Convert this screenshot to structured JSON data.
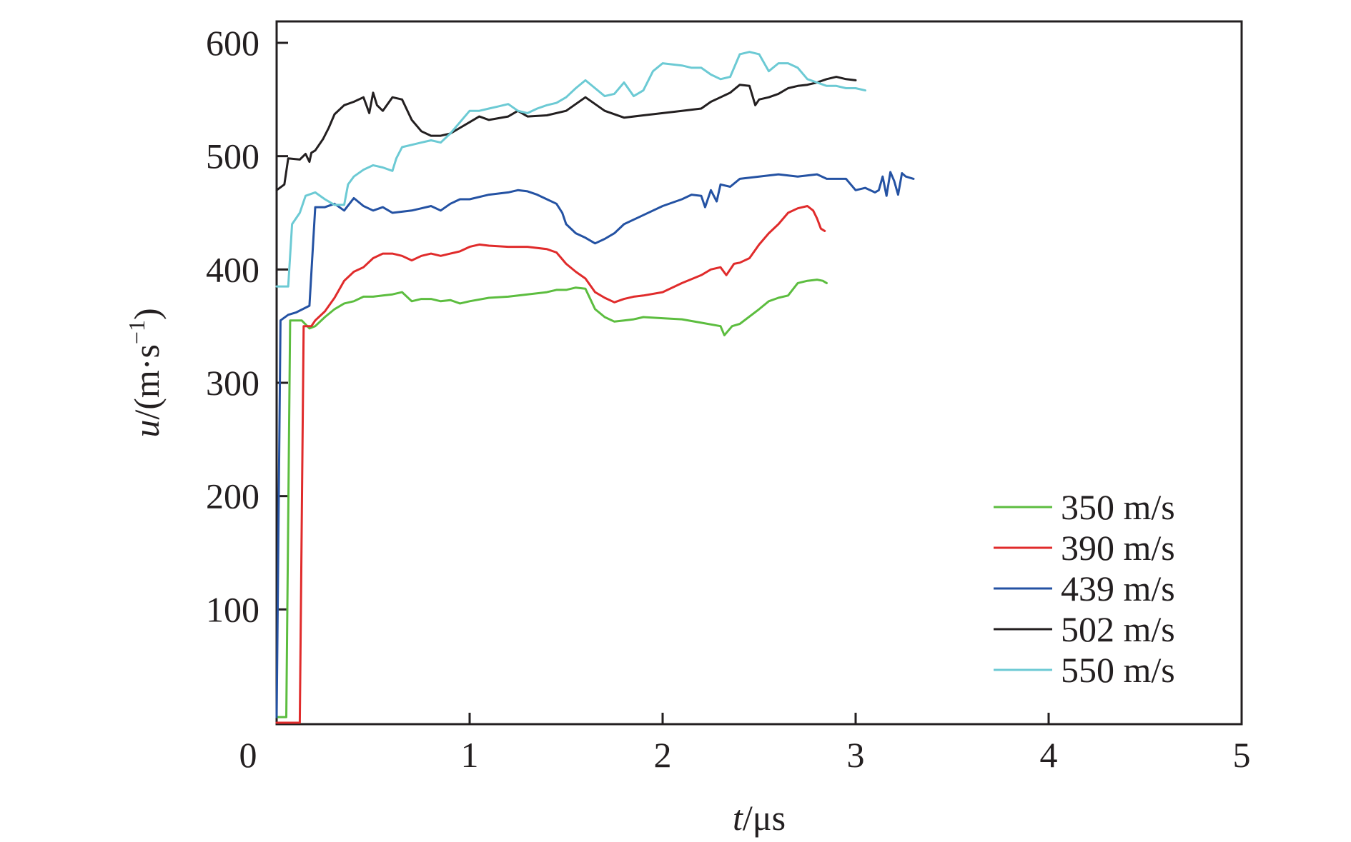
{
  "chart_data": {
    "type": "line",
    "title": "",
    "xlabel_var": "t",
    "xlabel_unit": "/μs",
    "ylabel_var": "u",
    "ylabel_unit": "/(m·s",
    "ylabel_sup": "−1",
    "ylabel_close": ")",
    "xlim": [
      0,
      5
    ],
    "ylim": [
      0,
      600
    ],
    "x_ticks": [
      0,
      1,
      2,
      3,
      4,
      5
    ],
    "x_tick_labels": [
      "0",
      "1",
      "2",
      "3",
      "4",
      "5"
    ],
    "y_ticks": [
      100,
      200,
      300,
      400,
      500,
      600
    ],
    "y_tick_labels": [
      "100",
      "200",
      "300",
      "400",
      "500",
      "600"
    ],
    "grid": false,
    "legend_position": "bottom-right",
    "series": [
      {
        "name": "350 m/s",
        "color": "#5cbd3f",
        "points": [
          [
            0,
            5
          ],
          [
            0.05,
            5
          ],
          [
            0.07,
            355
          ],
          [
            0.13,
            355
          ],
          [
            0.17,
            348
          ],
          [
            0.2,
            350
          ],
          [
            0.25,
            358
          ],
          [
            0.3,
            365
          ],
          [
            0.35,
            370
          ],
          [
            0.4,
            372
          ],
          [
            0.45,
            376
          ],
          [
            0.5,
            376
          ],
          [
            0.55,
            377
          ],
          [
            0.6,
            378
          ],
          [
            0.65,
            380
          ],
          [
            0.7,
            372
          ],
          [
            0.75,
            374
          ],
          [
            0.8,
            374
          ],
          [
            0.85,
            372
          ],
          [
            0.9,
            373
          ],
          [
            0.95,
            370
          ],
          [
            1.0,
            372
          ],
          [
            1.1,
            375
          ],
          [
            1.2,
            376
          ],
          [
            1.3,
            378
          ],
          [
            1.4,
            380
          ],
          [
            1.45,
            382
          ],
          [
            1.5,
            382
          ],
          [
            1.55,
            384
          ],
          [
            1.6,
            383
          ],
          [
            1.65,
            365
          ],
          [
            1.7,
            358
          ],
          [
            1.75,
            354
          ],
          [
            1.8,
            355
          ],
          [
            1.85,
            356
          ],
          [
            1.9,
            358
          ],
          [
            2.0,
            357
          ],
          [
            2.1,
            356
          ],
          [
            2.2,
            353
          ],
          [
            2.3,
            350
          ],
          [
            2.32,
            342
          ],
          [
            2.36,
            350
          ],
          [
            2.4,
            352
          ],
          [
            2.5,
            365
          ],
          [
            2.55,
            372
          ],
          [
            2.6,
            375
          ],
          [
            2.65,
            377
          ],
          [
            2.7,
            388
          ],
          [
            2.75,
            390
          ],
          [
            2.8,
            391
          ],
          [
            2.83,
            390
          ],
          [
            2.85,
            388
          ]
        ]
      },
      {
        "name": "390 m/s",
        "color": "#e02b2b",
        "points": [
          [
            0,
            0
          ],
          [
            0.12,
            0
          ],
          [
            0.14,
            350
          ],
          [
            0.18,
            350
          ],
          [
            0.2,
            355
          ],
          [
            0.25,
            363
          ],
          [
            0.3,
            375
          ],
          [
            0.35,
            390
          ],
          [
            0.4,
            398
          ],
          [
            0.45,
            402
          ],
          [
            0.5,
            410
          ],
          [
            0.55,
            414
          ],
          [
            0.6,
            414
          ],
          [
            0.65,
            412
          ],
          [
            0.7,
            408
          ],
          [
            0.75,
            412
          ],
          [
            0.8,
            414
          ],
          [
            0.85,
            412
          ],
          [
            0.9,
            414
          ],
          [
            0.95,
            416
          ],
          [
            1.0,
            420
          ],
          [
            1.05,
            422
          ],
          [
            1.1,
            421
          ],
          [
            1.2,
            420
          ],
          [
            1.3,
            420
          ],
          [
            1.4,
            418
          ],
          [
            1.45,
            415
          ],
          [
            1.5,
            405
          ],
          [
            1.55,
            398
          ],
          [
            1.6,
            392
          ],
          [
            1.65,
            380
          ],
          [
            1.7,
            375
          ],
          [
            1.75,
            371
          ],
          [
            1.8,
            374
          ],
          [
            1.85,
            376
          ],
          [
            1.9,
            377
          ],
          [
            2.0,
            380
          ],
          [
            2.1,
            388
          ],
          [
            2.2,
            395
          ],
          [
            2.25,
            400
          ],
          [
            2.3,
            402
          ],
          [
            2.33,
            395
          ],
          [
            2.37,
            405
          ],
          [
            2.4,
            406
          ],
          [
            2.45,
            410
          ],
          [
            2.5,
            422
          ],
          [
            2.55,
            432
          ],
          [
            2.6,
            440
          ],
          [
            2.65,
            450
          ],
          [
            2.7,
            454
          ],
          [
            2.75,
            456
          ],
          [
            2.78,
            452
          ],
          [
            2.8,
            445
          ],
          [
            2.82,
            436
          ],
          [
            2.84,
            434
          ]
        ]
      },
      {
        "name": "439 m/s",
        "color": "#2452a3",
        "points": [
          [
            0,
            5
          ],
          [
            0.02,
            355
          ],
          [
            0.06,
            360
          ],
          [
            0.1,
            362
          ],
          [
            0.17,
            368
          ],
          [
            0.2,
            455
          ],
          [
            0.25,
            455
          ],
          [
            0.3,
            458
          ],
          [
            0.35,
            452
          ],
          [
            0.4,
            463
          ],
          [
            0.45,
            456
          ],
          [
            0.5,
            452
          ],
          [
            0.55,
            455
          ],
          [
            0.6,
            450
          ],
          [
            0.7,
            452
          ],
          [
            0.75,
            454
          ],
          [
            0.8,
            456
          ],
          [
            0.85,
            452
          ],
          [
            0.9,
            458
          ],
          [
            0.95,
            462
          ],
          [
            1.0,
            462
          ],
          [
            1.1,
            466
          ],
          [
            1.2,
            468
          ],
          [
            1.25,
            470
          ],
          [
            1.3,
            469
          ],
          [
            1.35,
            466
          ],
          [
            1.4,
            462
          ],
          [
            1.45,
            458
          ],
          [
            1.48,
            450
          ],
          [
            1.5,
            440
          ],
          [
            1.55,
            432
          ],
          [
            1.6,
            428
          ],
          [
            1.65,
            423
          ],
          [
            1.7,
            427
          ],
          [
            1.75,
            432
          ],
          [
            1.8,
            440
          ],
          [
            1.9,
            448
          ],
          [
            2.0,
            456
          ],
          [
            2.1,
            462
          ],
          [
            2.15,
            466
          ],
          [
            2.2,
            465
          ],
          [
            2.22,
            455
          ],
          [
            2.25,
            470
          ],
          [
            2.28,
            460
          ],
          [
            2.3,
            475
          ],
          [
            2.35,
            473
          ],
          [
            2.4,
            480
          ],
          [
            2.5,
            482
          ],
          [
            2.6,
            484
          ],
          [
            2.7,
            482
          ],
          [
            2.8,
            484
          ],
          [
            2.85,
            480
          ],
          [
            2.9,
            480
          ],
          [
            2.95,
            480
          ],
          [
            3.0,
            470
          ],
          [
            3.05,
            472
          ],
          [
            3.1,
            468
          ],
          [
            3.12,
            470
          ],
          [
            3.14,
            482
          ],
          [
            3.16,
            465
          ],
          [
            3.18,
            486
          ],
          [
            3.2,
            478
          ],
          [
            3.22,
            466
          ],
          [
            3.24,
            485
          ],
          [
            3.26,
            482
          ],
          [
            3.3,
            480
          ]
        ]
      },
      {
        "name": "502 m/s",
        "color": "#231f20",
        "points": [
          [
            0,
            470
          ],
          [
            0.04,
            475
          ],
          [
            0.06,
            498
          ],
          [
            0.12,
            497
          ],
          [
            0.15,
            502
          ],
          [
            0.17,
            495
          ],
          [
            0.18,
            503
          ],
          [
            0.2,
            505
          ],
          [
            0.24,
            515
          ],
          [
            0.27,
            525
          ],
          [
            0.3,
            537
          ],
          [
            0.35,
            545
          ],
          [
            0.4,
            548
          ],
          [
            0.45,
            552
          ],
          [
            0.48,
            538
          ],
          [
            0.5,
            556
          ],
          [
            0.52,
            545
          ],
          [
            0.55,
            540
          ],
          [
            0.6,
            552
          ],
          [
            0.65,
            550
          ],
          [
            0.7,
            532
          ],
          [
            0.75,
            522
          ],
          [
            0.8,
            518
          ],
          [
            0.85,
            518
          ],
          [
            0.9,
            520
          ],
          [
            0.95,
            525
          ],
          [
            1.0,
            530
          ],
          [
            1.05,
            535
          ],
          [
            1.1,
            532
          ],
          [
            1.2,
            535
          ],
          [
            1.25,
            540
          ],
          [
            1.3,
            535
          ],
          [
            1.4,
            536
          ],
          [
            1.5,
            540
          ],
          [
            1.6,
            552
          ],
          [
            1.65,
            546
          ],
          [
            1.7,
            540
          ],
          [
            1.8,
            534
          ],
          [
            1.9,
            536
          ],
          [
            2.0,
            538
          ],
          [
            2.1,
            540
          ],
          [
            2.2,
            542
          ],
          [
            2.25,
            548
          ],
          [
            2.3,
            552
          ],
          [
            2.35,
            556
          ],
          [
            2.4,
            563
          ],
          [
            2.45,
            562
          ],
          [
            2.48,
            545
          ],
          [
            2.5,
            550
          ],
          [
            2.55,
            552
          ],
          [
            2.6,
            555
          ],
          [
            2.65,
            560
          ],
          [
            2.7,
            562
          ],
          [
            2.75,
            563
          ],
          [
            2.8,
            565
          ],
          [
            2.85,
            568
          ],
          [
            2.9,
            570
          ],
          [
            2.95,
            568
          ],
          [
            3.0,
            567
          ]
        ]
      },
      {
        "name": "550 m/s",
        "color": "#6ccad4",
        "points": [
          [
            0,
            385
          ],
          [
            0.06,
            385
          ],
          [
            0.08,
            440
          ],
          [
            0.12,
            450
          ],
          [
            0.15,
            465
          ],
          [
            0.2,
            468
          ],
          [
            0.25,
            462
          ],
          [
            0.3,
            457
          ],
          [
            0.35,
            457
          ],
          [
            0.37,
            475
          ],
          [
            0.4,
            482
          ],
          [
            0.45,
            488
          ],
          [
            0.5,
            492
          ],
          [
            0.55,
            490
          ],
          [
            0.6,
            487
          ],
          [
            0.62,
            498
          ],
          [
            0.65,
            508
          ],
          [
            0.7,
            510
          ],
          [
            0.75,
            512
          ],
          [
            0.8,
            514
          ],
          [
            0.85,
            512
          ],
          [
            0.9,
            520
          ],
          [
            0.95,
            530
          ],
          [
            1.0,
            540
          ],
          [
            1.05,
            540
          ],
          [
            1.1,
            542
          ],
          [
            1.15,
            544
          ],
          [
            1.2,
            546
          ],
          [
            1.25,
            540
          ],
          [
            1.3,
            538
          ],
          [
            1.35,
            542
          ],
          [
            1.4,
            545
          ],
          [
            1.45,
            547
          ],
          [
            1.5,
            552
          ],
          [
            1.55,
            560
          ],
          [
            1.6,
            567
          ],
          [
            1.65,
            560
          ],
          [
            1.7,
            553
          ],
          [
            1.75,
            555
          ],
          [
            1.8,
            565
          ],
          [
            1.85,
            553
          ],
          [
            1.9,
            558
          ],
          [
            1.95,
            575
          ],
          [
            2.0,
            582
          ],
          [
            2.1,
            580
          ],
          [
            2.15,
            578
          ],
          [
            2.2,
            578
          ],
          [
            2.25,
            572
          ],
          [
            2.3,
            568
          ],
          [
            2.35,
            570
          ],
          [
            2.4,
            590
          ],
          [
            2.45,
            592
          ],
          [
            2.5,
            590
          ],
          [
            2.55,
            575
          ],
          [
            2.6,
            582
          ],
          [
            2.65,
            582
          ],
          [
            2.7,
            578
          ],
          [
            2.75,
            568
          ],
          [
            2.8,
            565
          ],
          [
            2.85,
            562
          ],
          [
            2.9,
            562
          ],
          [
            2.95,
            560
          ],
          [
            3.0,
            560
          ],
          [
            3.05,
            558
          ]
        ]
      }
    ]
  }
}
